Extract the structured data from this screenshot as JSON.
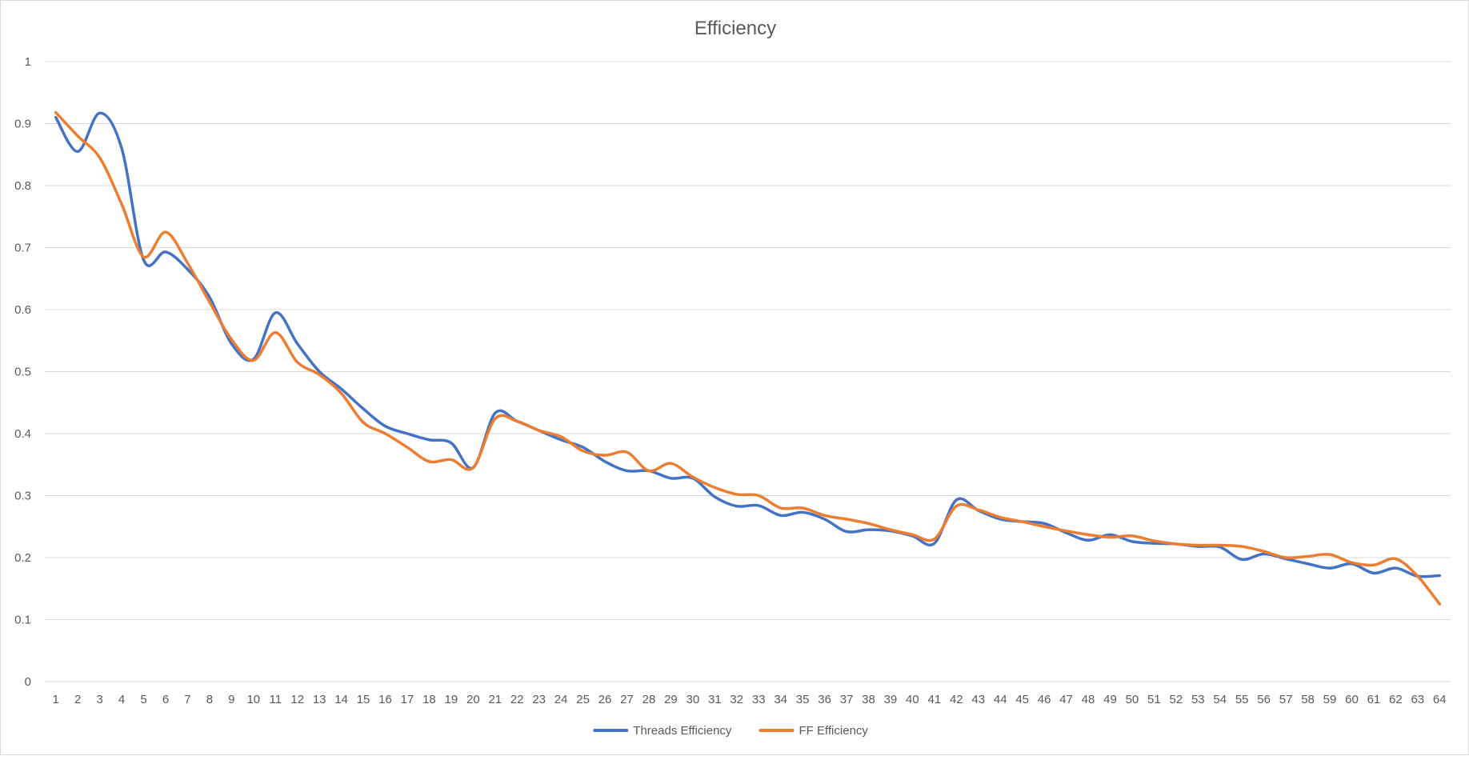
{
  "chart_data": {
    "type": "line",
    "title": "Efficiency",
    "xlabel": "",
    "ylabel": "",
    "x": [
      1,
      2,
      3,
      4,
      5,
      6,
      7,
      8,
      9,
      10,
      11,
      12,
      13,
      14,
      15,
      16,
      17,
      18,
      19,
      20,
      21,
      22,
      23,
      24,
      25,
      26,
      27,
      28,
      29,
      30,
      31,
      32,
      33,
      34,
      35,
      36,
      37,
      38,
      39,
      40,
      41,
      42,
      43,
      44,
      45,
      46,
      47,
      48,
      49,
      50,
      51,
      52,
      53,
      54,
      55,
      56,
      57,
      58,
      59,
      60,
      61,
      62,
      63,
      64
    ],
    "ylim": [
      0,
      1
    ],
    "yticks": [
      0,
      0.1,
      0.2,
      0.3,
      0.4,
      0.5,
      0.6,
      0.7,
      0.8,
      0.9,
      1
    ],
    "ytick_labels": [
      "0",
      "0.1",
      "0.2",
      "0.3",
      "0.4",
      "0.5",
      "0.6",
      "0.7",
      "0.8",
      "0.9",
      "1"
    ],
    "grid": "horizontal",
    "legend_position": "bottom-center",
    "series": [
      {
        "name": "Threads Efficiency",
        "color": "#4472C4",
        "values": [
          0.91,
          0.855,
          0.917,
          0.86,
          0.68,
          0.693,
          0.665,
          0.62,
          0.545,
          0.52,
          0.595,
          0.545,
          0.5,
          0.472,
          0.44,
          0.412,
          0.4,
          0.39,
          0.385,
          0.345,
          0.433,
          0.42,
          0.405,
          0.39,
          0.378,
          0.355,
          0.34,
          0.34,
          0.328,
          0.328,
          0.298,
          0.283,
          0.284,
          0.268,
          0.273,
          0.262,
          0.242,
          0.245,
          0.243,
          0.235,
          0.223,
          0.293,
          0.276,
          0.262,
          0.258,
          0.255,
          0.24,
          0.228,
          0.237,
          0.226,
          0.223,
          0.222,
          0.218,
          0.217,
          0.197,
          0.206,
          0.198,
          0.19,
          0.183,
          0.19,
          0.175,
          0.183,
          0.17,
          0.171
        ]
      },
      {
        "name": "FF Efficiency",
        "color": "#ED7D31",
        "values": [
          0.918,
          0.88,
          0.845,
          0.77,
          0.685,
          0.725,
          0.675,
          0.612,
          0.552,
          0.518,
          0.563,
          0.515,
          0.495,
          0.465,
          0.418,
          0.4,
          0.378,
          0.355,
          0.358,
          0.345,
          0.424,
          0.42,
          0.405,
          0.395,
          0.372,
          0.365,
          0.37,
          0.34,
          0.352,
          0.33,
          0.313,
          0.302,
          0.3,
          0.28,
          0.28,
          0.268,
          0.262,
          0.255,
          0.245,
          0.237,
          0.23,
          0.283,
          0.277,
          0.265,
          0.258,
          0.25,
          0.243,
          0.237,
          0.233,
          0.235,
          0.227,
          0.222,
          0.22,
          0.22,
          0.218,
          0.21,
          0.2,
          0.202,
          0.205,
          0.192,
          0.188,
          0.198,
          0.17,
          0.125
        ]
      }
    ]
  }
}
